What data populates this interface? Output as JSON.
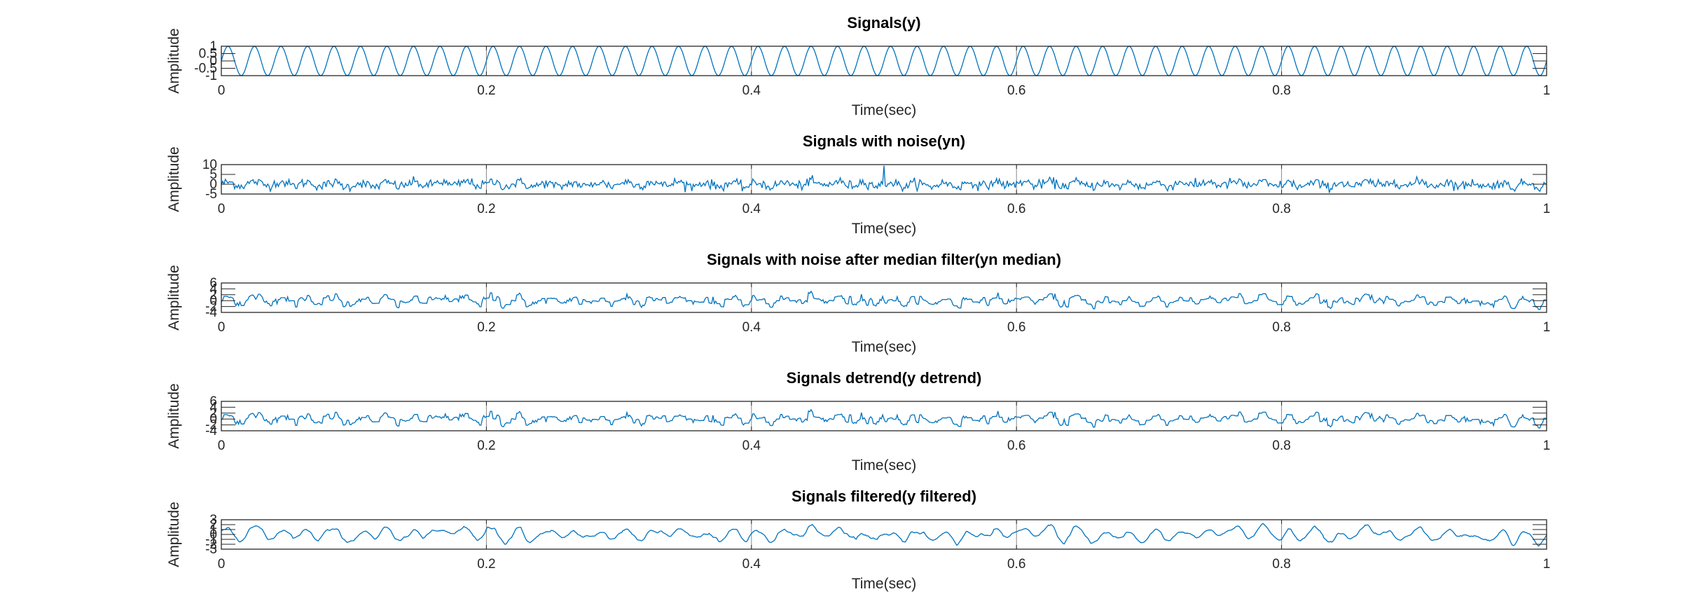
{
  "figure": {
    "background": "#ffffff",
    "line_color": "#0072bd",
    "axis_color": "#262626"
  },
  "chart_data": [
    {
      "type": "line",
      "title": "Signals(y)",
      "xlabel": "Time(sec)",
      "ylabel": "Amplitude",
      "xlim": [
        0,
        1
      ],
      "ylim": [
        -1,
        1
      ],
      "xticks": [
        0,
        0.2,
        0.4,
        0.6,
        0.8,
        1
      ],
      "xtick_labels": [
        "0",
        "0.2",
        "0.4",
        "0.6",
        "0.8",
        "1"
      ],
      "ytick_labels": [
        "-1",
        "-0.5",
        "0",
        "0.5",
        "1"
      ],
      "grid": "x-major",
      "series": [
        {
          "signal": "sine",
          "frequency_hz": 50,
          "amplitude": 1,
          "samples": 1001
        }
      ]
    },
    {
      "type": "line",
      "title": "Signals with noise(yn)",
      "xlabel": "Time(sec)",
      "ylabel": "Amplitude",
      "xlim": [
        0,
        1
      ],
      "ylim": [
        -5,
        10
      ],
      "xticks": [
        0,
        0.2,
        0.4,
        0.6,
        0.8,
        1
      ],
      "xtick_labels": [
        "0",
        "0.2",
        "0.4",
        "0.6",
        "0.8",
        "1"
      ],
      "ytick_labels": [
        "-5",
        "0",
        "5",
        "10"
      ],
      "grid": "x-major",
      "series": [
        {
          "signal": "sine+noise",
          "frequency_hz": 50,
          "amplitude": 1,
          "noise_std": 1.2,
          "impulse_at": 0.5,
          "impulse_value": 9.5,
          "samples": 1001
        }
      ]
    },
    {
      "type": "line",
      "title": "Signals with noise after median filter(yn median)",
      "xlabel": "Time(sec)",
      "ylabel": "Amplitude",
      "xlim": [
        0,
        1
      ],
      "ylim": [
        -4,
        6
      ],
      "xticks": [
        0,
        0.2,
        0.4,
        0.6,
        0.8,
        1
      ],
      "xtick_labels": [
        "0",
        "0.2",
        "0.4",
        "0.6",
        "0.8",
        "1"
      ],
      "ytick_labels": [
        "-4",
        "-2",
        "0",
        "2",
        "4",
        "6"
      ],
      "grid": "x-major",
      "series": [
        {
          "signal": "median",
          "frequency_hz": 50,
          "amplitude": 1,
          "noise_std": 1.2,
          "samples": 1001
        }
      ]
    },
    {
      "type": "line",
      "title": "Signals detrend(y detrend)",
      "xlabel": "Time(sec)",
      "ylabel": "Amplitude",
      "xlim": [
        0,
        1
      ],
      "ylim": [
        -4,
        6
      ],
      "xticks": [
        0,
        0.2,
        0.4,
        0.6,
        0.8,
        1
      ],
      "xtick_labels": [
        "0",
        "0.2",
        "0.4",
        "0.6",
        "0.8",
        "1"
      ],
      "ytick_labels": [
        "-4",
        "-2",
        "0",
        "2",
        "4",
        "6"
      ],
      "grid": "x-major",
      "series": [
        {
          "signal": "detrend",
          "frequency_hz": 50,
          "amplitude": 1,
          "noise_std": 1.2,
          "samples": 1001
        }
      ]
    },
    {
      "type": "line",
      "title": "Signals filtered(y filtered)",
      "xlabel": "Time(sec)",
      "ylabel": "Amplitude",
      "xlim": [
        0,
        1
      ],
      "ylim": [
        -3,
        3
      ],
      "xticks": [
        0,
        0.2,
        0.4,
        0.6,
        0.8,
        1
      ],
      "xtick_labels": [
        "0",
        "0.2",
        "0.4",
        "0.6",
        "0.8",
        "1"
      ],
      "ytick_labels": [
        "-3",
        "-2",
        "-1",
        "0",
        "1",
        "2",
        "3"
      ],
      "grid": "x-major",
      "series": [
        {
          "signal": "smoothed",
          "frequency_hz": 50,
          "amplitude": 1,
          "noise_std": 1.2,
          "samples": 1001
        }
      ]
    }
  ]
}
